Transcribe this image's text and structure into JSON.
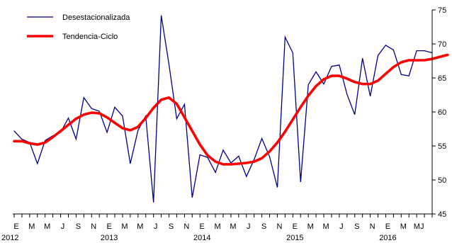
{
  "chart_data": {
    "type": "line",
    "title": "",
    "xlabel": "",
    "ylabel": "",
    "ylim": [
      45,
      75
    ],
    "yticks": [
      45,
      50,
      55,
      60,
      65,
      70,
      75
    ],
    "y_axis_side": "right",
    "grid": false,
    "legend_placement": "top-left",
    "x_month_letters": [
      "E",
      "M",
      "M",
      "J",
      "S",
      "N",
      "E",
      "M",
      "M",
      "J",
      "S",
      "N",
      "E",
      "M",
      "M",
      "J",
      "S",
      "N",
      "E",
      "M",
      "M",
      "J",
      "S",
      "N",
      "E",
      "M",
      "MJ"
    ],
    "x_year_labels": [
      {
        "label": "2012",
        "month_index": 0
      },
      {
        "label": "2013",
        "month_index": 12
      },
      {
        "label": "2014",
        "month_index": 24
      },
      {
        "label": "2015",
        "month_index": 36
      },
      {
        "label": "2016",
        "month_index": 48
      }
    ],
    "series": [
      {
        "name": "Desestacionalizada",
        "color": "#00008B",
        "values": [
          57.2,
          56.0,
          55.5,
          52.4,
          55.8,
          56.5,
          57.0,
          59.1,
          56.0,
          62.1,
          60.5,
          60.1,
          57.0,
          60.7,
          59.4,
          52.4,
          57.3,
          59.4,
          46.7,
          74.2,
          67.0,
          59.0,
          61.1,
          47.4,
          53.7,
          53.3,
          51.1,
          54.4,
          52.5,
          53.5,
          50.5,
          53.0,
          56.1,
          53.4,
          48.9,
          71.0,
          68.7,
          49.7,
          64.0,
          65.9,
          64.1,
          66.7,
          66.9,
          62.6,
          59.6,
          67.9,
          62.3,
          68.3,
          69.8,
          69.1,
          65.5,
          65.3,
          69.0,
          69.0,
          68.7
        ]
      },
      {
        "name": "Tendencia-Ciclo",
        "color": "#FF0000",
        "values": [
          55.7,
          55.7,
          55.4,
          55.2,
          55.5,
          56.3,
          57.2,
          58.1,
          59.0,
          59.6,
          59.9,
          59.8,
          59.2,
          58.4,
          57.6,
          57.3,
          57.8,
          59.1,
          60.6,
          61.8,
          62.1,
          61.2,
          59.2,
          57.2,
          55.2,
          53.6,
          52.7,
          52.3,
          52.3,
          52.4,
          52.5,
          52.7,
          53.2,
          54.2,
          55.5,
          57.1,
          58.9,
          60.7,
          62.4,
          63.8,
          64.8,
          65.3,
          65.3,
          64.9,
          64.4,
          64.1,
          64.1,
          64.6,
          65.6,
          66.6,
          67.3,
          67.6,
          67.6,
          67.6,
          67.8,
          68.1,
          68.4
        ]
      }
    ]
  }
}
